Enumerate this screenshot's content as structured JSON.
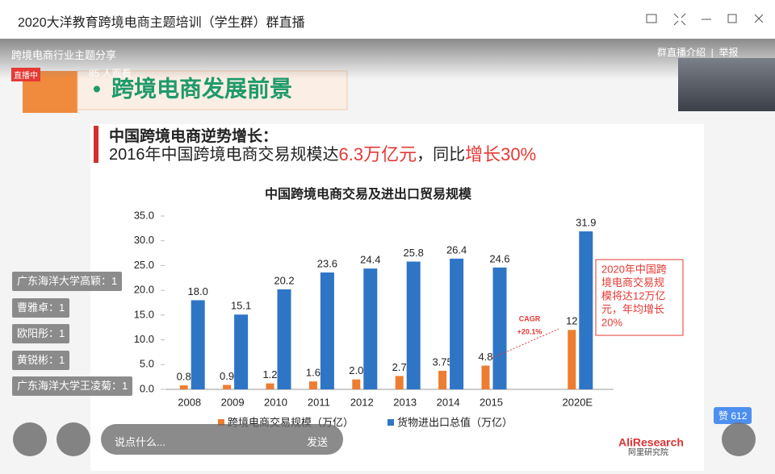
{
  "window": {
    "title": "2020大洋教育跨境电商主题培训（学生群）群直播"
  },
  "stream": {
    "title": "跨境电商行业主题分享",
    "badge": "直播中",
    "viewers": "85 人观看",
    "links": [
      "群直播介绍",
      "举报"
    ]
  },
  "slide": {
    "heading": "跨境电商发展前景",
    "subheading": "中国跨境电商逆势增长：",
    "headline": [
      "2016年中国跨境电商交易规模达",
      "6.3万亿元",
      "，同比",
      "增长30%"
    ],
    "chart_data": {
      "type": "bar",
      "title": "中国跨境电商交易及进出口贸易规模",
      "categories": [
        "2008",
        "2009",
        "2010",
        "2011",
        "2012",
        "2013",
        "2014",
        "2015",
        null,
        "2020E"
      ],
      "series": [
        {
          "name": "跨境电商交易规模（万亿）",
          "color": "#ed7d31",
          "values": [
            0.8,
            0.9,
            1.2,
            1.6,
            2.0,
            2.7,
            3.75,
            4.8,
            null,
            12
          ],
          "value_labels": [
            "0.8",
            "0.9",
            "1.2",
            "1.6",
            "2.0",
            "2.7",
            "3.75",
            "4.8",
            null,
            "12"
          ]
        },
        {
          "name": "货物进出口总值（万亿）",
          "color": "#2e75c6",
          "values": [
            18.0,
            15.1,
            20.2,
            23.6,
            24.4,
            25.8,
            26.4,
            24.6,
            null,
            31.9
          ],
          "value_labels": [
            "18.0",
            "15.1",
            "20.2",
            "23.6",
            "24.4",
            "25.8",
            "26.4",
            "24.6",
            null,
            "31.9"
          ]
        }
      ],
      "ylim": [
        0,
        35
      ],
      "yticks": [
        {
          "value": 0,
          "label": "0.0"
        },
        {
          "value": 5,
          "label": "5.0"
        },
        {
          "value": 10,
          "label": "10.0"
        },
        {
          "value": 15,
          "label": "15.0"
        },
        {
          "value": 20,
          "label": "20.0"
        },
        {
          "value": 25,
          "label": "25.0"
        },
        {
          "value": 30,
          "label": "30.0"
        },
        {
          "value": 35,
          "label": "35.0"
        }
      ],
      "cagr": {
        "label": "CAGR",
        "value": "+20.1%"
      },
      "callout": [
        "2020年中国跨",
        "境电商交易规",
        "模将达12万亿",
        "元，年均增长",
        "20%"
      ]
    },
    "logo": {
      "en": "AliResearch",
      "cn": "阿里研究院"
    }
  },
  "comments": [
    "广东海洋大学高颖：1",
    "曹雅卓：1",
    "欧阳彤：1",
    "黄锐彬：1",
    "广东海洋大学王凌菊：1"
  ],
  "like": {
    "label": "赞",
    "count": 612
  },
  "input": {
    "placeholder": "说点什么...",
    "send": "发送"
  }
}
